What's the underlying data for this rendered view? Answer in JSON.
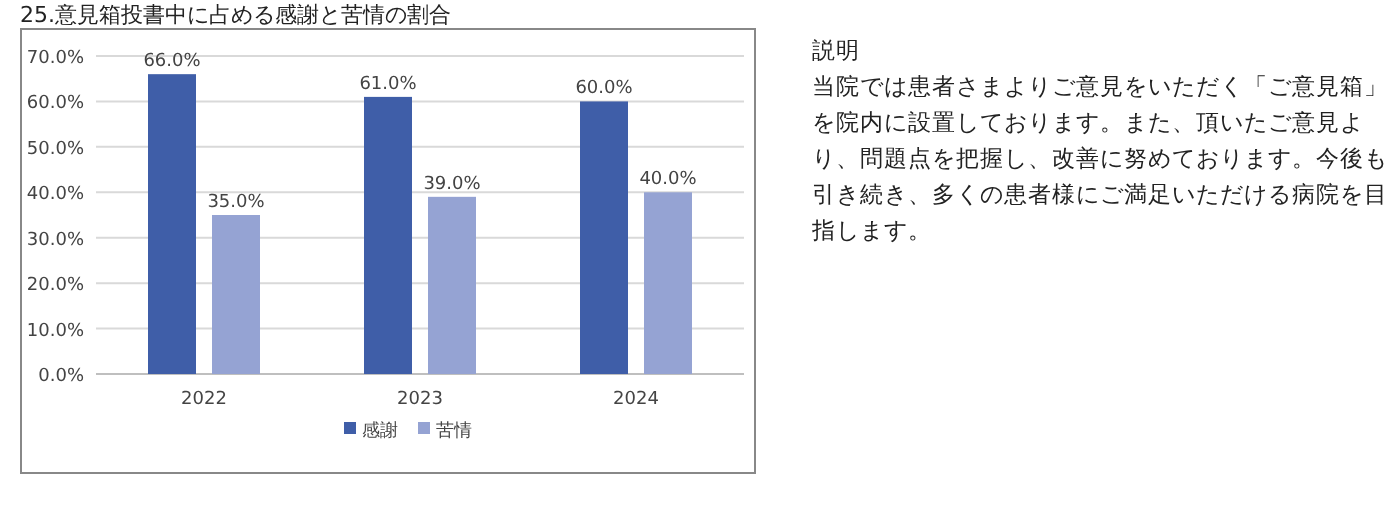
{
  "chart_data": {
    "type": "bar",
    "title": "25.意見箱投書中に占める感謝と苦情の割合",
    "categories": [
      "2022",
      "2023",
      "2024"
    ],
    "series": [
      {
        "name": "感謝",
        "color": "#3f5ea8",
        "values": [
          66,
          61,
          60
        ],
        "value_labels": [
          "66.0%",
          "61.0%",
          "60.0%"
        ]
      },
      {
        "name": "苦情",
        "color": "#95a3d3",
        "values": [
          35,
          39,
          40
        ],
        "value_labels": [
          "35.0%",
          "39.0%",
          "40.0%"
        ]
      }
    ],
    "ylim": [
      0,
      70
    ],
    "yticks": [
      {
        "value": 0,
        "label": "0.0%"
      },
      {
        "value": 10,
        "label": "10.0%"
      },
      {
        "value": 20,
        "label": "20.0%"
      },
      {
        "value": 30,
        "label": "30.0%"
      },
      {
        "value": 40,
        "label": "40.0%"
      },
      {
        "value": 50,
        "label": "50.0%"
      },
      {
        "value": 60,
        "label": "60.0%"
      },
      {
        "value": 70,
        "label": "70.0%"
      }
    ],
    "grid": "y",
    "legend": "bottom",
    "annotations": [
      "説明",
      "当院では患者さまよりご意見をいただく「ご意見箱」を院内に設置しております。また、頂いたご意見より、問題点を把握し、改善に努めております。今後も引き続き、多くの患者様にご満足いただける病院を目指します。"
    ]
  }
}
